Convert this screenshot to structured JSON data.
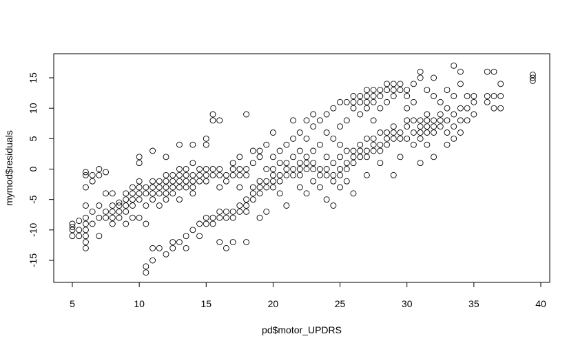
{
  "chart_data": {
    "type": "scatter",
    "x_label": "pd$motor_UPDRS",
    "y_label": "mymod$residuals",
    "xlim": [
      3.61,
      40.67
    ],
    "ylim": [
      -18.62,
      18.96
    ],
    "xticks": [
      5,
      10,
      15,
      20,
      25,
      30,
      35,
      40
    ],
    "yticks": [
      -15,
      -10,
      -5,
      0,
      5,
      10,
      15
    ],
    "color": "#000000",
    "x": [
      5,
      5,
      5,
      5,
      5.5,
      5.5,
      5.5,
      6,
      6,
      6,
      6,
      6,
      6,
      6,
      6,
      6,
      6,
      6.5,
      6.5,
      6.5,
      6.5,
      7,
      7,
      7,
      7,
      7,
      7.5,
      7.5,
      7.5,
      7.5,
      8,
      8,
      8,
      8,
      8,
      8.5,
      8.5,
      8.5,
      8.5,
      9,
      9,
      9,
      9,
      9,
      9.5,
      9.5,
      9.5,
      9.5,
      9.5,
      10,
      10,
      10,
      10,
      10,
      10,
      10,
      10.5,
      10.5,
      10.5,
      10.5,
      10.5,
      10.5,
      11,
      11,
      11,
      11,
      11,
      11,
      11,
      11.5,
      11.5,
      11.5,
      11.5,
      11.5,
      12,
      12,
      12,
      12,
      12,
      12,
      12,
      12.5,
      12.5,
      12.5,
      12.5,
      12.5,
      12.5,
      13,
      13,
      13,
      13,
      13,
      13,
      13,
      13.5,
      13.5,
      13.5,
      13.5,
      13.5,
      13.5,
      14,
      14,
      14,
      14,
      14,
      14,
      14,
      14.5,
      14.5,
      14.5,
      14.5,
      14.5,
      15,
      15,
      15,
      15,
      15,
      15,
      15,
      15.5,
      15.5,
      15.5,
      15.5,
      15.5,
      15.5,
      16,
      16,
      16,
      16,
      16,
      16,
      16,
      16.5,
      16.5,
      16.5,
      16.5,
      16.5,
      17,
      17,
      17,
      17,
      17,
      17,
      17.5,
      17.5,
      17.5,
      17.5,
      17.5,
      17.5,
      18,
      18,
      18,
      18,
      18,
      18,
      18,
      18.5,
      18.5,
      18.5,
      18.5,
      18.5,
      19,
      19,
      19,
      19,
      19,
      19,
      19.5,
      19.5,
      19.5,
      19.5,
      19.5,
      20,
      20,
      20,
      20,
      20,
      20,
      20.5,
      20.5,
      20.5,
      20.5,
      20.5,
      21,
      21,
      21,
      21,
      21,
      21.5,
      21.5,
      21.5,
      21.5,
      21.5,
      22,
      22,
      22,
      22,
      22,
      22,
      22.5,
      22.5,
      22.5,
      22.5,
      22.5,
      22.5,
      23,
      23,
      23,
      23,
      23,
      23,
      23.5,
      23.5,
      23.5,
      23.5,
      23.5,
      24,
      24,
      24,
      24,
      24,
      24,
      24.5,
      24.5,
      24.5,
      24.5,
      24.5,
      24.5,
      25,
      25,
      25,
      25,
      25,
      25,
      25,
      25.5,
      25.5,
      25.5,
      25.5,
      25.5,
      25.5,
      26,
      26,
      26,
      26,
      26,
      26,
      26,
      26.5,
      26.5,
      26.5,
      26.5,
      26.5,
      26.5,
      27,
      27,
      27,
      27,
      27,
      27,
      27,
      27,
      27.5,
      27.5,
      27.5,
      27.5,
      27.5,
      27.5,
      27.5,
      28,
      28,
      28,
      28,
      28,
      28,
      28,
      28.5,
      28.5,
      28.5,
      28.5,
      28.5,
      28.5,
      29,
      29,
      29,
      29,
      29,
      29,
      29,
      29.5,
      29.5,
      29.5,
      29.5,
      29.5,
      30,
      30,
      30,
      30,
      30,
      30,
      30.5,
      30.5,
      30.5,
      30.5,
      30.5,
      31,
      31,
      31,
      31,
      31,
      31,
      31,
      31.5,
      31.5,
      31.5,
      31.5,
      31.5,
      31.5,
      32,
      32,
      32,
      32,
      32,
      32,
      32.5,
      32.5,
      32.5,
      32.5,
      33,
      33,
      33,
      33,
      33,
      33.5,
      33.5,
      33.5,
      33.5,
      33.5,
      34,
      34,
      34,
      34,
      34,
      34.5,
      34.5,
      34.5,
      35,
      35,
      35,
      36,
      36,
      36,
      36.5,
      36.5,
      36.5,
      37,
      37,
      37,
      39.4,
      39.4,
      39.4
    ],
    "values": [
      -9,
      -10,
      -11,
      -9.5,
      -10,
      -8.5,
      -11,
      -13,
      -12,
      -9,
      -8,
      -6,
      -3,
      -1,
      -0.5,
      -10,
      -11,
      -7,
      -1,
      -2,
      -9,
      -8,
      -6,
      -1,
      0,
      -11,
      -7,
      -8,
      -0.5,
      -4,
      -6,
      -7,
      -8,
      -9,
      -4,
      -6,
      -7,
      -5.5,
      -8,
      -5,
      -6,
      -7,
      -4,
      -9,
      -4,
      -5,
      -6,
      -3,
      -8,
      -4,
      -3,
      -5,
      -2,
      1,
      2,
      -8,
      -4,
      -3,
      -6,
      -9,
      -16,
      -17,
      -4,
      -3,
      -2,
      -5,
      -13,
      -15,
      3,
      -3,
      -4,
      -2,
      -6,
      -13,
      -3,
      -2,
      -4,
      -1,
      -5,
      -14,
      2,
      -3,
      -2,
      -1,
      -4,
      -12,
      -13,
      -2,
      -3,
      -1,
      0,
      -5,
      -12,
      4,
      -2,
      -1,
      -3,
      0,
      -11,
      -13,
      -2,
      -1,
      -3,
      1,
      -10,
      -4,
      4,
      -1,
      -2,
      0,
      -9,
      -11,
      -1,
      0,
      -2,
      -8,
      -9,
      4,
      5,
      -8,
      -9,
      -1,
      0,
      9,
      8,
      -8,
      -7,
      -1,
      0,
      -12,
      -3,
      8,
      -8,
      -7,
      -2,
      -1,
      -13,
      -8,
      -7,
      -1,
      0,
      1,
      -12,
      -7,
      -6,
      -1,
      0,
      2,
      -3,
      -7,
      -6,
      -5,
      -1,
      0,
      9,
      -12,
      -5,
      -4,
      -3,
      1,
      3,
      -4,
      -3,
      -2,
      -8,
      2,
      3,
      -3,
      -2,
      -7,
      0,
      4,
      -2,
      -1,
      -3,
      0,
      2,
      6,
      -2,
      -1,
      1,
      3,
      -4,
      -1,
      0,
      1,
      4,
      -6,
      -1,
      0,
      2,
      5,
      8,
      -1,
      0,
      1,
      3,
      6,
      -3,
      0,
      1,
      2,
      5,
      8,
      -4,
      0,
      1,
      3,
      7,
      -2,
      9,
      -1,
      0,
      4,
      8,
      -3,
      -1,
      0,
      2,
      6,
      9,
      -5,
      -2,
      -1,
      1,
      5,
      10,
      -6,
      -1,
      0,
      2,
      4,
      7,
      11,
      -3,
      0,
      1,
      3,
      8,
      11,
      -2,
      1,
      2,
      3,
      10,
      11,
      12,
      -4,
      2,
      3,
      4,
      11,
      12,
      9,
      2,
      3,
      5,
      10,
      11,
      12,
      13,
      -1,
      3,
      4,
      5,
      11,
      12,
      13,
      8,
      3,
      4,
      6,
      10,
      12,
      13,
      1,
      4,
      5,
      6,
      11,
      13,
      14,
      5,
      6,
      7,
      12,
      13,
      14,
      -1,
      5,
      6,
      13,
      14,
      2,
      5,
      7,
      8,
      12,
      13,
      10,
      4,
      6,
      8,
      11,
      14,
      5,
      6,
      7,
      8,
      15,
      16,
      1,
      6,
      7,
      8,
      9,
      13,
      4,
      6,
      7,
      8,
      12,
      15,
      2,
      7,
      8,
      9,
      11,
      4,
      6,
      8,
      10,
      13,
      5,
      7,
      9,
      12,
      17,
      6,
      8,
      10,
      14,
      16,
      8,
      10,
      12,
      9,
      11,
      12,
      11,
      12,
      16,
      10,
      12,
      16,
      10,
      12,
      14,
      15,
      14.5,
      15.5
    ]
  }
}
